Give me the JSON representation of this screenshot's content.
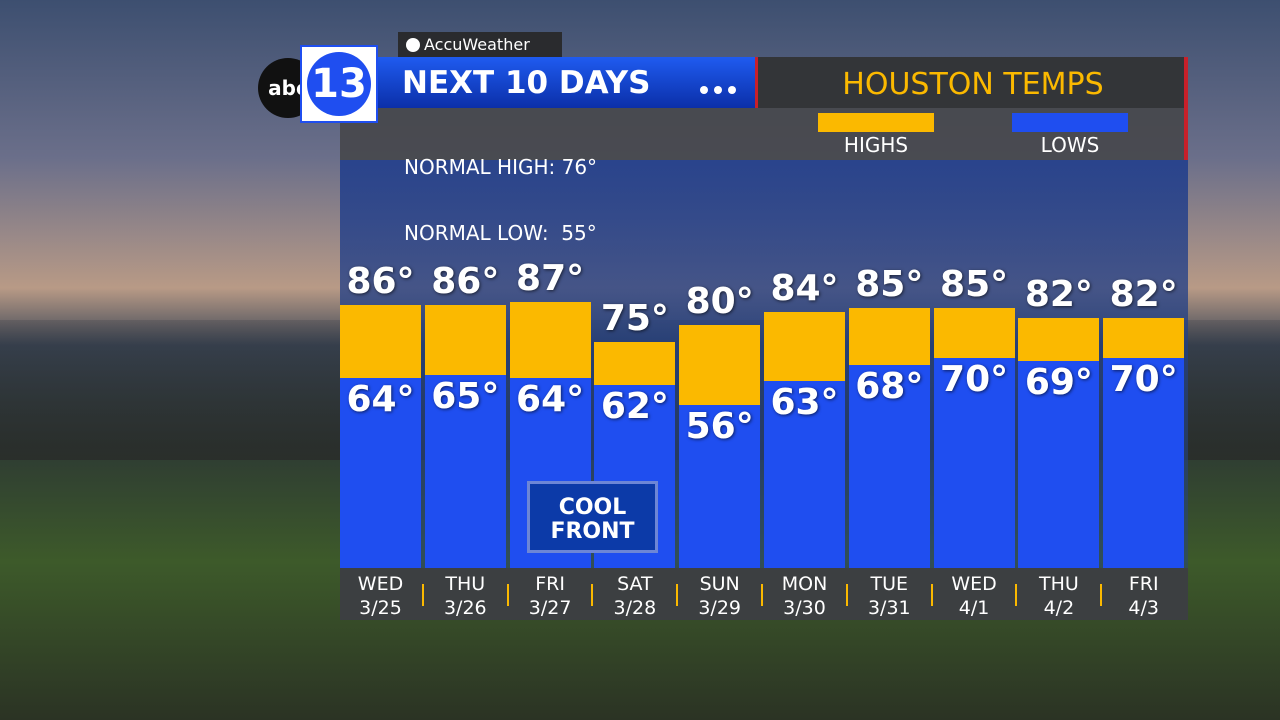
{
  "source": "AccuWeather",
  "logo": {
    "network": "abc",
    "channel": "13"
  },
  "header": {
    "title": "NEXT 10 DAYS",
    "region": "HOUSTON TEMPS"
  },
  "normals": [
    "NORMAL HIGH: 76°",
    "NORMAL LOW:  55°"
  ],
  "chart_data": {
    "type": "range-bar",
    "categories": [
      "WED",
      "THU",
      "FRI",
      "SAT",
      "SUN",
      "MON",
      "TUE",
      "WED",
      "THU",
      "FRI"
    ],
    "dates": [
      "3/25",
      "3/26",
      "3/27",
      "3/28",
      "3/29",
      "3/30",
      "3/31",
      "4/1",
      "4/2",
      "4/3"
    ],
    "series": [
      {
        "name": "HIGHS",
        "color": "#fbb900",
        "values": [
          86,
          86,
          87,
          75,
          80,
          84,
          85,
          85,
          82,
          82
        ],
        "value_labels": [
          "86°",
          "86°",
          "87°",
          "75°",
          "80°",
          "84°",
          "85°",
          "85°",
          "82°",
          "82°"
        ]
      },
      {
        "name": "LOWS",
        "color": "#1f4ef0",
        "values": [
          64,
          65,
          64,
          62,
          56,
          63,
          68,
          70,
          69,
          70
        ],
        "value_labels": [
          "64°",
          "65°",
          "64°",
          "62°",
          "56°",
          "63°",
          "68°",
          "70°",
          "69°",
          "70°"
        ]
      }
    ],
    "annotation": "COOL FRONT"
  }
}
